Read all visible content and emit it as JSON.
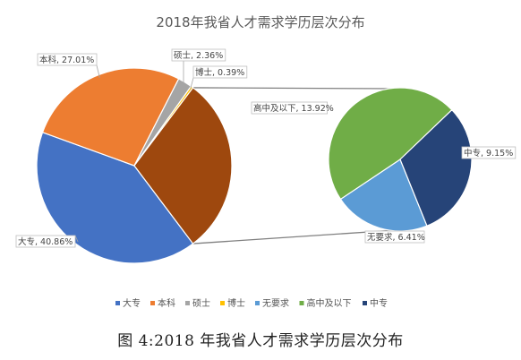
{
  "chart_data": {
    "type": "pie",
    "title": "2018年我省人才需求学历层次分布",
    "series": [
      {
        "name": "大专",
        "label": "大专, 40.86%",
        "value": 40.86,
        "color": "#4472C4"
      },
      {
        "name": "本科",
        "label": "本科, 27.01%",
        "value": 27.01,
        "color": "#ED7D31"
      },
      {
        "name": "硕士",
        "label": "硕士, 2.36%",
        "value": 2.36,
        "color": "#A5A5A5"
      },
      {
        "name": "博士",
        "label": "博士, 0.39%",
        "value": 0.39,
        "color": "#FFC000"
      },
      {
        "name": "无要求",
        "label": "无要求, 6.41%",
        "value": 6.41,
        "color": "#5B9BD5"
      },
      {
        "name": "高中及以下",
        "label": "高中及以下, 13.92%",
        "value": 13.92,
        "color": "#70AD47"
      },
      {
        "name": "中专",
        "label": "中专, 9.15%",
        "value": 9.15,
        "color": "#264478"
      }
    ],
    "other_slice": {
      "value": 29.48,
      "color": "#9E480E"
    },
    "legend_position": "bottom"
  },
  "caption": "图 4:2018 年我省人才需求学历层次分布"
}
